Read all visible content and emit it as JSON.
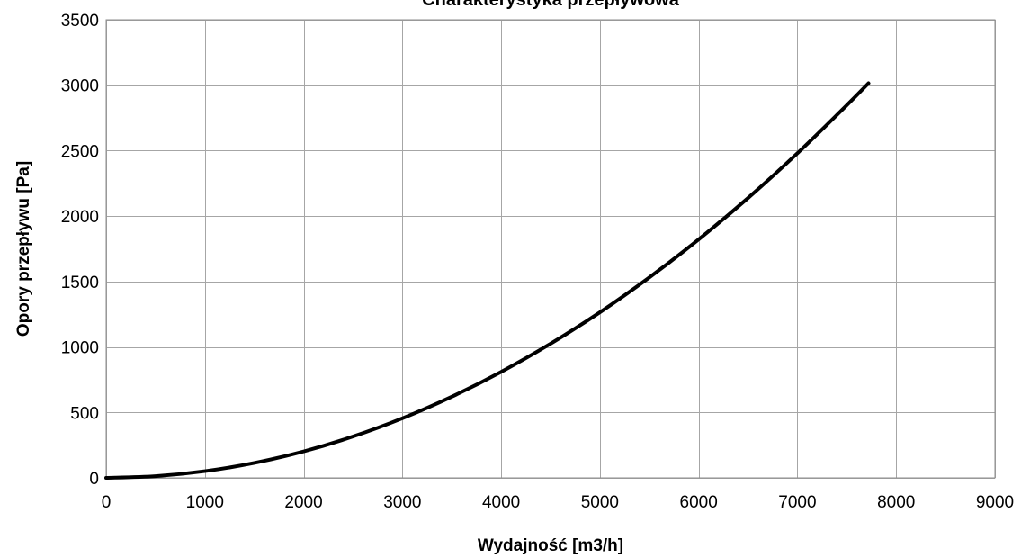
{
  "chart_data": {
    "type": "line",
    "title": "Charakterystyka przepływowa",
    "xlabel": "Wydajność [m3/h]",
    "ylabel": "Opory przepływu [Pa]",
    "xlim": [
      0,
      9000
    ],
    "ylim": [
      0,
      3500
    ],
    "xticks": [
      "0",
      "1000",
      "2000",
      "3000",
      "4000",
      "5000",
      "6000",
      "7000",
      "8000",
      "9000"
    ],
    "yticks": [
      "0",
      "500",
      "1000",
      "1500",
      "2000",
      "2500",
      "3000",
      "3500"
    ],
    "grid": true,
    "legend": "none",
    "series": [
      {
        "color": "#000000",
        "x": [
          0,
          500,
          1000,
          1500,
          2000,
          2500,
          3000,
          3500,
          4000,
          4500,
          5000,
          5500,
          6000,
          6500,
          7000,
          7500,
          7720
        ],
        "y": [
          0,
          13,
          51,
          114,
          202,
          316,
          455,
          620,
          810,
          1025,
          1265,
          1531,
          1822,
          2138,
          2480,
          2847,
          3015
        ]
      }
    ]
  }
}
